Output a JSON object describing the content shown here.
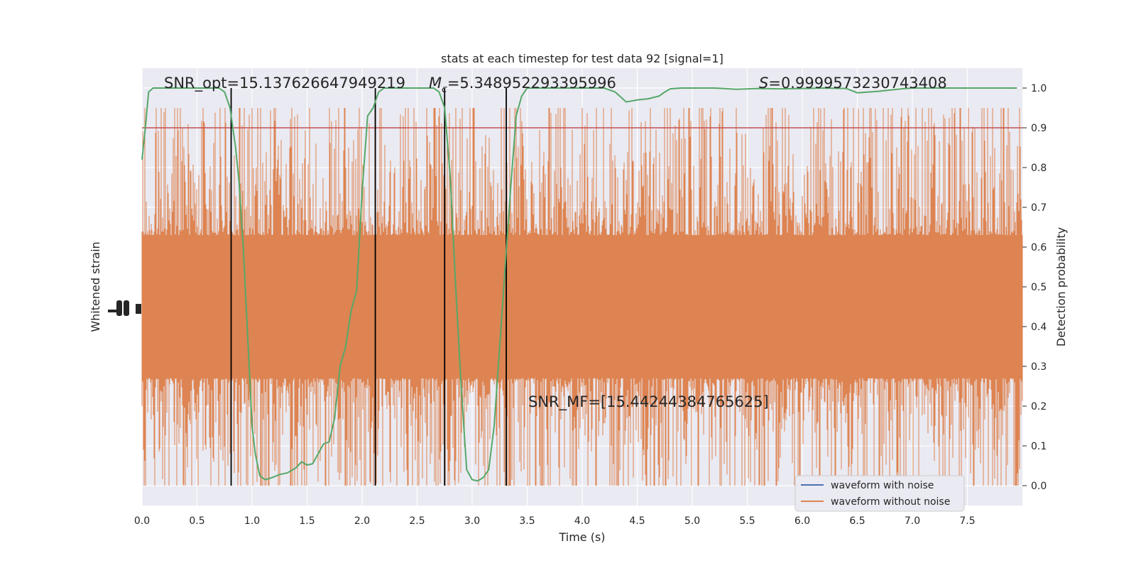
{
  "chart_data": {
    "type": "line",
    "title": "stats at each timestep for test data 92 [signal=1]",
    "xlabel": "Time (s)",
    "ylabel_left": "Whitened strain",
    "ylabel_right": "Detection probability",
    "xlim": [
      0,
      8
    ],
    "ylim_right": [
      -0.05,
      1.05
    ],
    "x_ticks": [
      0.0,
      0.5,
      1.0,
      1.5,
      2.0,
      2.5,
      3.0,
      3.5,
      4.0,
      4.5,
      5.0,
      5.5,
      6.0,
      6.5,
      7.0,
      7.5
    ],
    "x_tick_labels": [
      "0.0",
      "0.5",
      "1.0",
      "1.5",
      "2.0",
      "2.5",
      "3.0",
      "3.5",
      "4.0",
      "4.5",
      "5.0",
      "5.5",
      "6.0",
      "6.5",
      "7.0",
      "7.5"
    ],
    "y_ticks_right": [
      0.0,
      0.1,
      0.2,
      0.3,
      0.4,
      0.5,
      0.6,
      0.7,
      0.8,
      0.9,
      1.0
    ],
    "y_tick_labels_right": [
      "0.0",
      "0.1",
      "0.2",
      "0.3",
      "0.4",
      "0.5",
      "0.6",
      "0.7",
      "0.8",
      "0.9",
      "1.0"
    ],
    "grid": true,
    "legend_position": "bottom-right",
    "legend": [
      {
        "label": "waveform with noise",
        "color": "#4c72b0"
      },
      {
        "label": "waveform without noise",
        "color": "#dd8452"
      }
    ],
    "annotations": {
      "snr_opt": "SNR_opt=15.137626647949219",
      "mc_symbol": "M",
      "mc_sub": "c",
      "mc_value": "=5.348952293395996",
      "s_symbol": "S",
      "s_value": "=0.9999573230743408",
      "snr_mf": "SNR_MF=[15.44244384765625]"
    },
    "threshold": {
      "value": 0.9,
      "color": "#c44e52"
    },
    "vertical_lines": [
      0.81,
      2.12,
      2.75,
      3.31
    ],
    "noise_band": {
      "center": 0.45,
      "core_half_width": 0.18,
      "color": "#dd8452"
    },
    "detection_probability": {
      "color": "#55a868",
      "x": [
        0.0,
        0.03,
        0.06,
        0.1,
        0.2,
        0.3,
        0.4,
        0.5,
        0.6,
        0.65,
        0.7,
        0.75,
        0.8,
        0.85,
        0.88,
        0.92,
        0.97,
        1.0,
        1.03,
        1.07,
        1.12,
        1.18,
        1.25,
        1.32,
        1.4,
        1.45,
        1.5,
        1.55,
        1.6,
        1.65,
        1.7,
        1.75,
        1.8,
        1.85,
        1.9,
        1.95,
        2.0,
        2.05,
        2.1,
        2.15,
        2.2,
        2.25,
        2.3,
        2.4,
        2.5,
        2.6,
        2.65,
        2.7,
        2.75,
        2.8,
        2.85,
        2.9,
        2.95,
        3.0,
        3.05,
        3.1,
        3.15,
        3.2,
        3.25,
        3.3,
        3.35,
        3.4,
        3.45,
        3.5,
        3.6,
        3.8,
        4.0,
        4.2,
        4.3,
        4.4,
        4.5,
        4.6,
        4.7,
        4.75,
        4.8,
        4.9,
        5.0,
        5.2,
        5.4,
        5.6,
        5.8,
        6.0,
        6.2,
        6.4,
        6.5,
        6.7,
        6.9,
        7.0,
        7.2,
        7.4,
        7.6,
        7.8,
        7.95
      ],
      "y": [
        0.82,
        0.9,
        0.99,
        1.0,
        1.0,
        1.0,
        1.0,
        1.0,
        1.0,
        1.0,
        1.0,
        0.99,
        0.95,
        0.85,
        0.77,
        0.6,
        0.32,
        0.15,
        0.08,
        0.025,
        0.015,
        0.02,
        0.028,
        0.032,
        0.045,
        0.06,
        0.052,
        0.055,
        0.08,
        0.105,
        0.11,
        0.17,
        0.3,
        0.35,
        0.44,
        0.49,
        0.74,
        0.93,
        0.95,
        0.99,
        1.0,
        1.0,
        1.0,
        1.0,
        1.0,
        1.0,
        1.0,
        0.99,
        0.95,
        0.78,
        0.5,
        0.25,
        0.04,
        0.015,
        0.012,
        0.02,
        0.04,
        0.15,
        0.35,
        0.55,
        0.75,
        0.93,
        0.98,
        1.0,
        1.0,
        1.0,
        1.0,
        1.0,
        0.99,
        0.965,
        0.97,
        0.973,
        0.98,
        0.99,
        0.998,
        1.0,
        1.0,
        1.0,
        0.997,
        0.999,
        0.998,
        0.999,
        1.0,
        0.999,
        0.988,
        0.992,
        0.998,
        1.0,
        1.0,
        1.0,
        1.0,
        1.0,
        1.0
      ]
    }
  }
}
